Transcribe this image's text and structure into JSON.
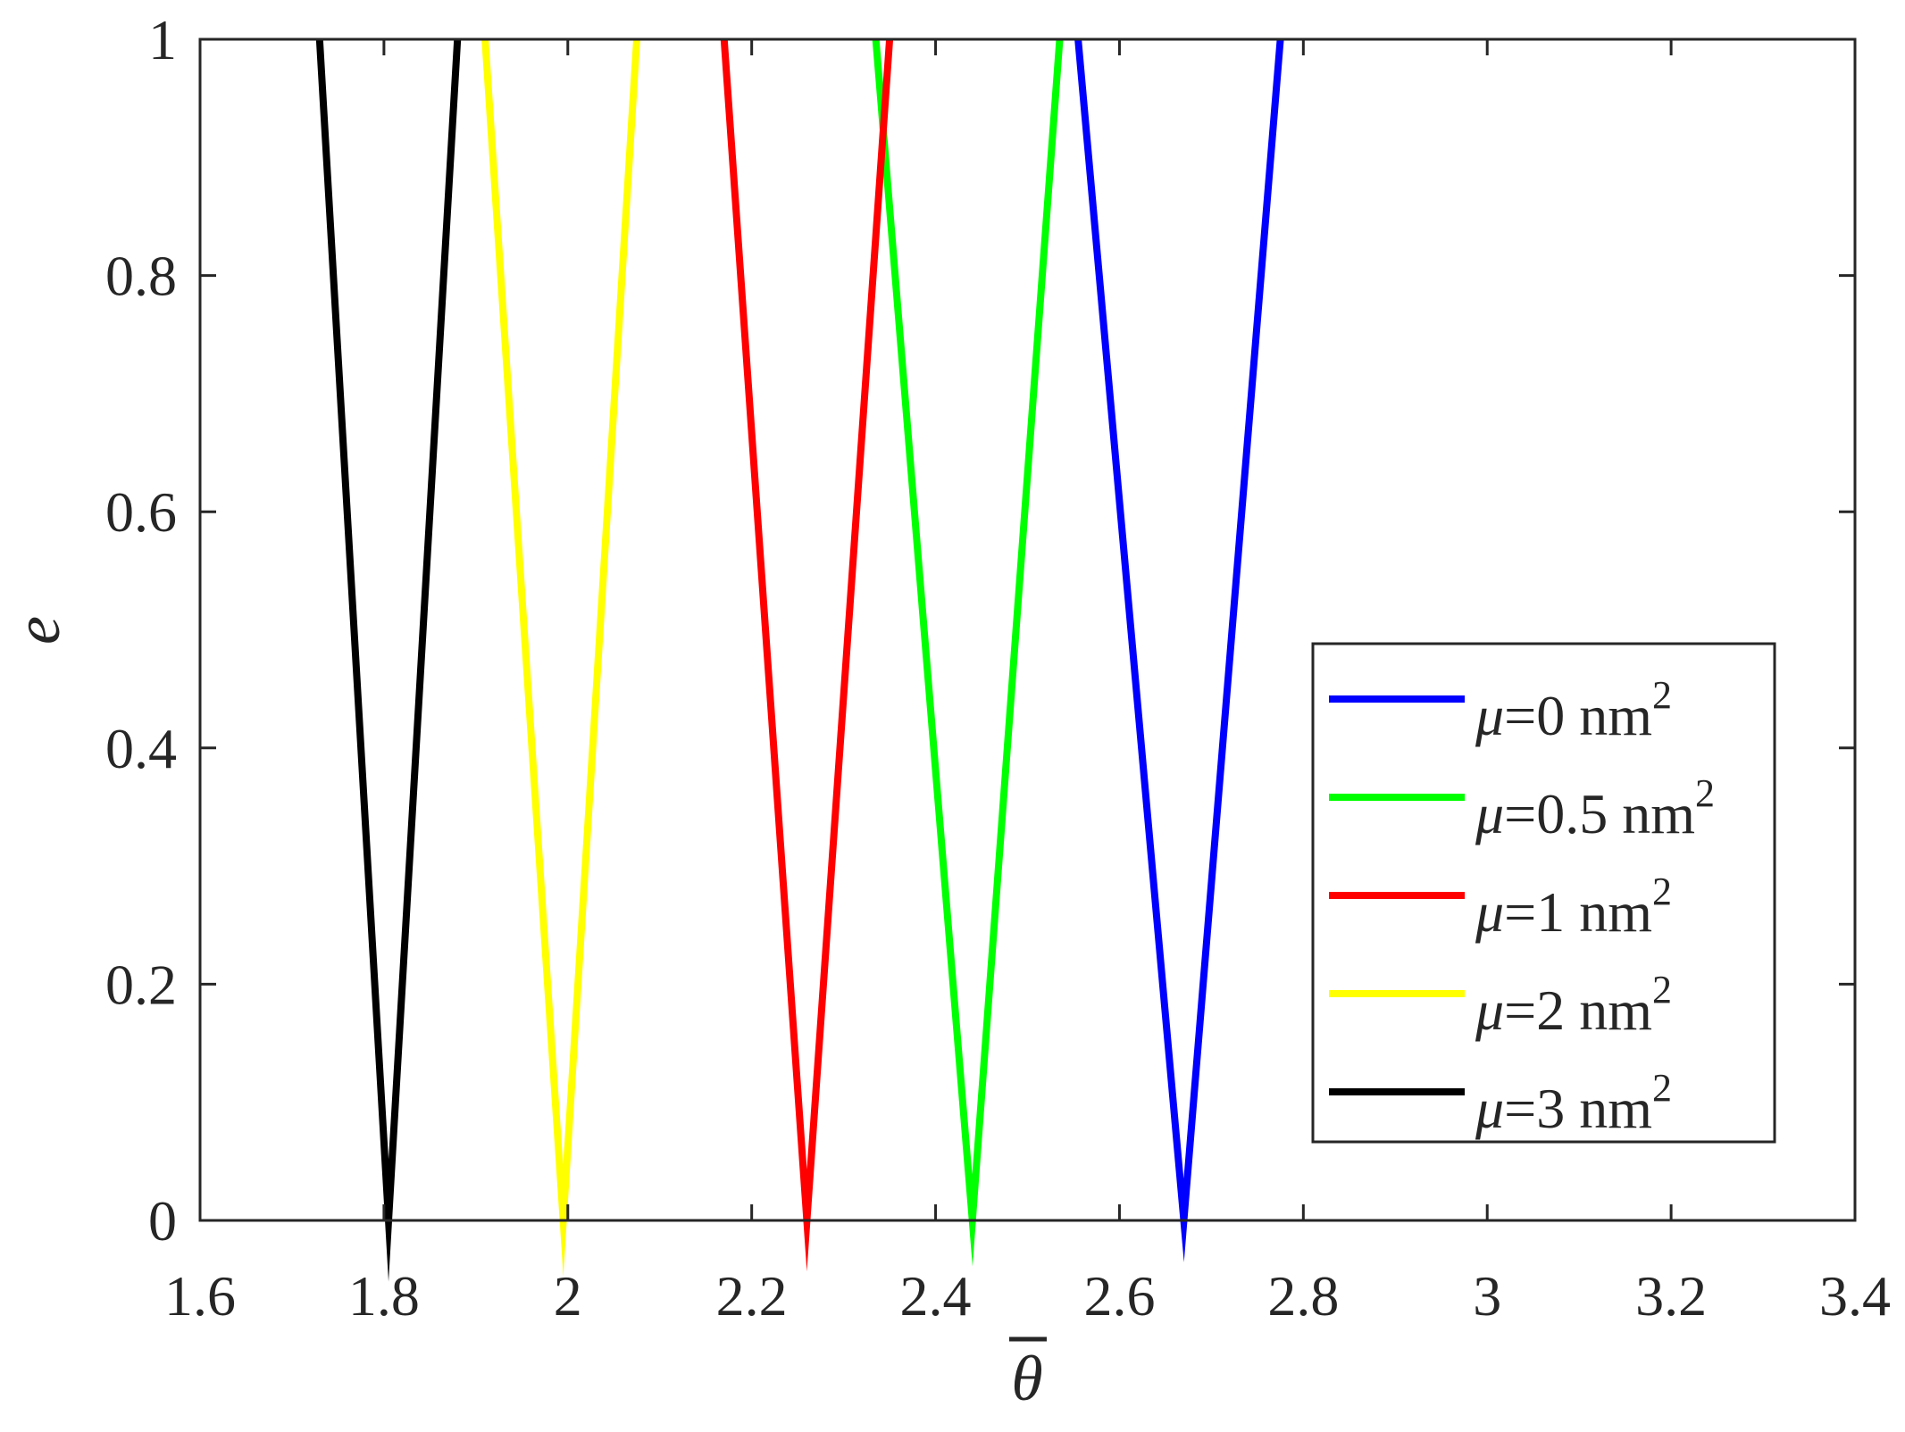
{
  "chart_data": {
    "type": "line",
    "title": "",
    "xlabel": "θ",
    "xlabel_overline": true,
    "ylabel": "e",
    "xlim": [
      1.6,
      3.4
    ],
    "ylim": [
      0,
      1
    ],
    "xticks": [
      "1.6",
      "1.8",
      "2",
      "2.2",
      "2.4",
      "2.6",
      "2.8",
      "3",
      "3.2",
      "3.4"
    ],
    "xtick_values": [
      1.6,
      1.8,
      2.0,
      2.2,
      2.4,
      2.6,
      2.8,
      3.0,
      3.2,
      3.4
    ],
    "yticks": [
      "0",
      "0.2",
      "0.4",
      "0.6",
      "0.8",
      "1"
    ],
    "ytick_values": [
      0,
      0.2,
      0.4,
      0.6,
      0.8,
      1.0
    ],
    "grid": false,
    "legend_position": "bottom-right",
    "series": [
      {
        "name_symbol": "μ",
        "name_rest": "=0 nm",
        "name_sup": "2",
        "color": "#0000ff",
        "x": [
          2.555,
          2.67,
          2.775
        ],
        "y": [
          1,
          0,
          1
        ]
      },
      {
        "name_symbol": "μ",
        "name_rest": "=0.5 nm",
        "name_sup": "2",
        "color": "#00ff00",
        "x": [
          2.335,
          2.44,
          2.535
        ],
        "y": [
          1,
          0,
          1
        ]
      },
      {
        "name_symbol": "μ",
        "name_rest": "=1 nm",
        "name_sup": "2",
        "color": "#ff0000",
        "x": [
          2.17,
          2.26,
          2.35
        ],
        "y": [
          1,
          0,
          1
        ]
      },
      {
        "name_symbol": "μ",
        "name_rest": "=2 nm",
        "name_sup": "2",
        "color": "#ffff00",
        "x": [
          1.91,
          1.995,
          2.075
        ],
        "y": [
          1,
          0,
          1
        ]
      },
      {
        "name_symbol": "μ",
        "name_rest": "=3 nm",
        "name_sup": "2",
        "color": "#000000",
        "x": [
          1.73,
          1.805,
          1.88
        ],
        "y": [
          1,
          0,
          1
        ]
      }
    ]
  }
}
